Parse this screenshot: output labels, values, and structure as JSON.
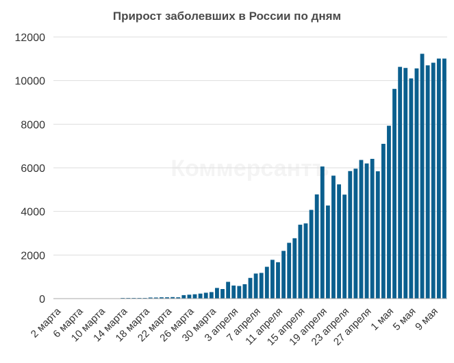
{
  "chart_data": {
    "type": "bar",
    "title": "Прирост заболевших в России по дням",
    "watermark": "Коммерсантъ",
    "ylim": [
      0,
      12000
    ],
    "yticks": [
      0,
      2000,
      4000,
      6000,
      8000,
      10000,
      12000
    ],
    "grid": true,
    "bar_color": "#0b5f8e",
    "categories": [
      "2 марта",
      "3 марта",
      "4 марта",
      "5 марта",
      "6 марта",
      "7 марта",
      "8 марта",
      "9 марта",
      "10 марта",
      "11 марта",
      "12 марта",
      "13 марта",
      "14 марта",
      "15 марта",
      "16 марта",
      "17 марта",
      "18 марта",
      "19 марта",
      "20 марта",
      "21 марта",
      "22 марта",
      "23 марта",
      "24 марта",
      "25 марта",
      "26 марта",
      "27 марта",
      "28 марта",
      "29 марта",
      "30 марта",
      "31 марта",
      "1 апреля",
      "2 апреля",
      "3 апреля",
      "4 апреля",
      "5 апреля",
      "6 апреля",
      "7 апреля",
      "8 апреля",
      "9 апреля",
      "10 апреля",
      "11 апреля",
      "12 апреля",
      "13 апреля",
      "14 апреля",
      "15 апреля",
      "16 апреля",
      "17 апреля",
      "18 апреля",
      "19 апреля",
      "20 апреля",
      "21 апреля",
      "22 апреля",
      "23 апреля",
      "24 апреля",
      "25 апреля",
      "26 апреля",
      "27 апреля",
      "28 апреля",
      "29 апреля",
      "30 апреля",
      "1 мая",
      "2 мая",
      "3 мая",
      "4 мая",
      "5 мая",
      "6 мая",
      "7 мая",
      "8 мая",
      "9 мая",
      "10 мая",
      "11 мая"
    ],
    "values": [
      0,
      0,
      0,
      0,
      0,
      0,
      0,
      0,
      0,
      0,
      0,
      0,
      10,
      10,
      30,
      30,
      30,
      50,
      50,
      60,
      60,
      70,
      60,
      160,
      180,
      200,
      230,
      270,
      300,
      490,
      440,
      770,
      600,
      580,
      660,
      950,
      1150,
      1180,
      1460,
      1780,
      1670,
      2190,
      2560,
      2770,
      3390,
      3450,
      4070,
      4780,
      6060,
      4270,
      5640,
      5240,
      4770,
      5850,
      5960,
      6360,
      6200,
      6410,
      5840,
      7100,
      7930,
      9620,
      10630,
      10580,
      10100,
      10560,
      11230,
      10700,
      10820,
      11010,
      11010
    ],
    "xtick_labels": [
      "2 марта",
      "6 марта",
      "10 марта",
      "14 марта",
      "18 марта",
      "22 марта",
      "26 марта",
      "30 марта",
      "3 апреля",
      "7 апреля",
      "11 апреля",
      "15 апреля",
      "19 апреля",
      "23 апреля",
      "27 апреля",
      "1 мая",
      "5 мая",
      "9 мая"
    ]
  }
}
